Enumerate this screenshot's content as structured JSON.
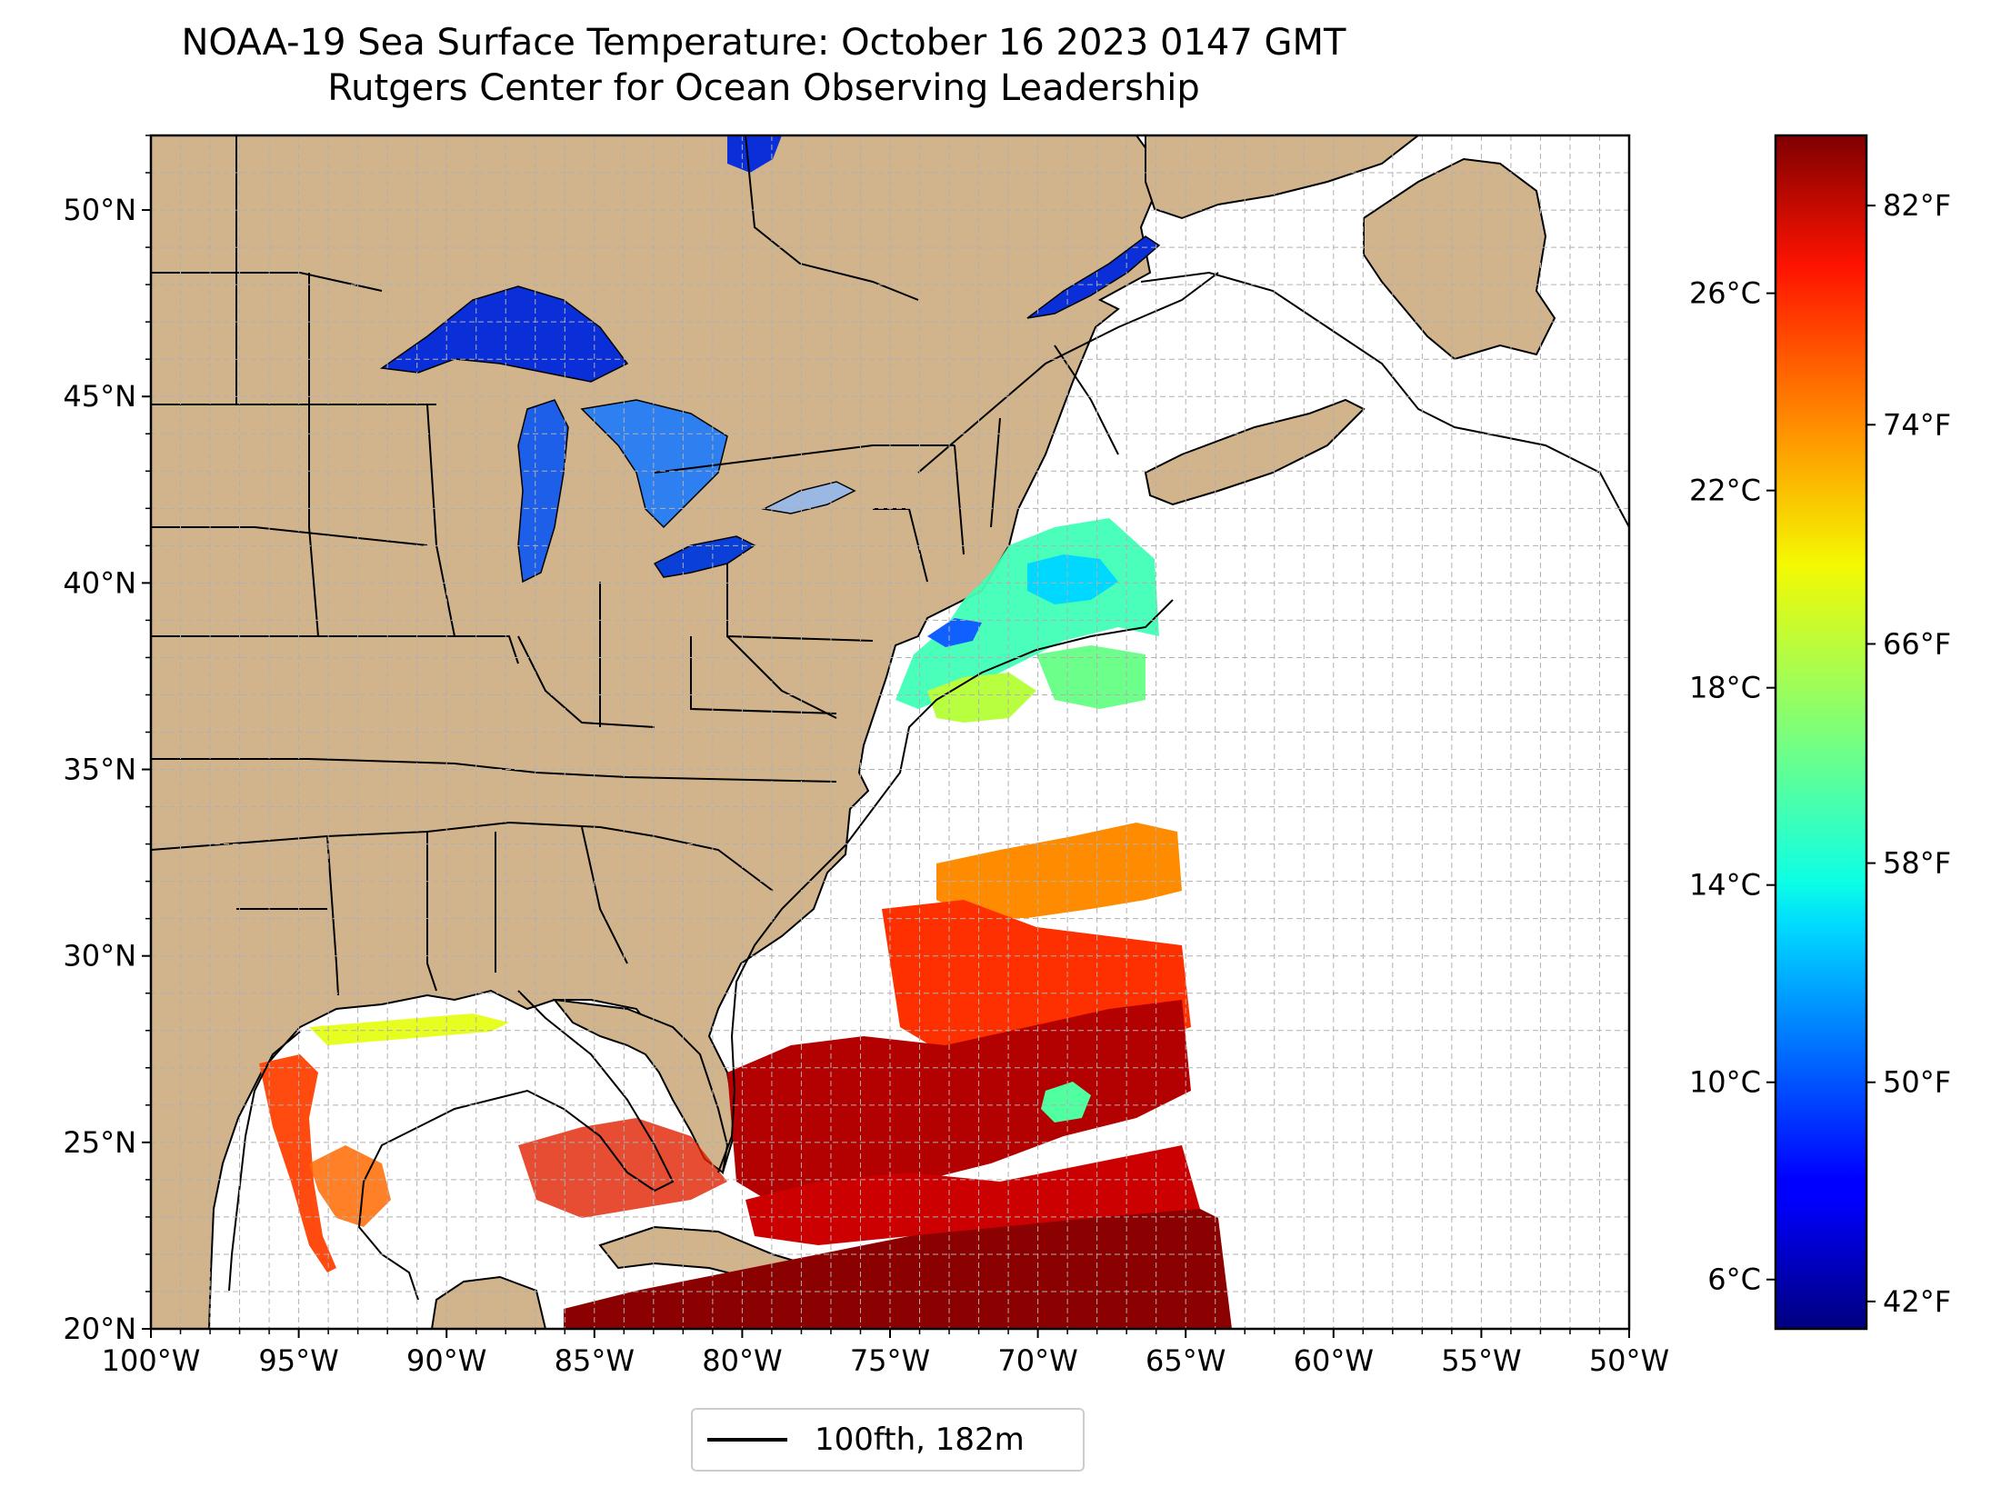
{
  "title": {
    "line1": "NOAA-19 Sea Surface Temperature: October 16 2023 0147 GMT",
    "line2": "Rutgers Center for Ocean Observing Leadership"
  },
  "map": {
    "region": "US East Coast, Gulf of Mexico and Western North Atlantic",
    "lon_range": [
      -100,
      -50
    ],
    "lat_range": [
      20,
      52
    ],
    "land_color": "#d2b48c",
    "lake_color": "#9ab8e4",
    "x_ticks": [
      "100°W",
      "95°W",
      "90°W",
      "85°W",
      "80°W",
      "75°W",
      "70°W",
      "65°W",
      "60°W",
      "55°W",
      "50°W"
    ],
    "y_ticks": [
      "20°N",
      "25°N",
      "30°N",
      "35°N",
      "40°N",
      "45°N",
      "50°N"
    ],
    "grid": true
  },
  "legend": {
    "label": "100fth, 182m",
    "line_color": "#000000"
  },
  "colorbar": {
    "colormap": "jet",
    "range_c": [
      5,
      29.2
    ],
    "celsius_ticks": [
      "6°C",
      "10°C",
      "14°C",
      "18°C",
      "22°C",
      "26°C"
    ],
    "fahrenheit_ticks": [
      "42°F",
      "50°F",
      "58°F",
      "66°F",
      "74°F",
      "82°F"
    ]
  }
}
